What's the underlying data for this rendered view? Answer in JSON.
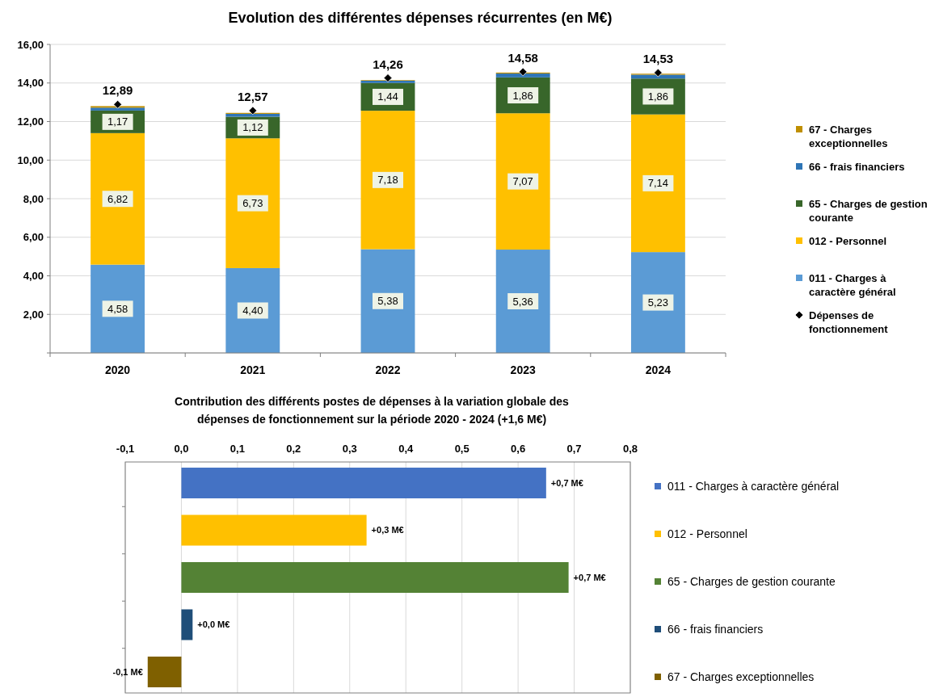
{
  "chart_data": [
    {
      "type": "bar",
      "title": "Evolution des différentes dépenses récurrentes (en M€)",
      "categories": [
        "2020",
        "2021",
        "2022",
        "2023",
        "2024"
      ],
      "stacked": true,
      "ylim": [
        0,
        16
      ],
      "yticks": [
        {
          "value": 0,
          "label": null
        },
        {
          "value": 2,
          "label": "2,00"
        },
        {
          "value": 4,
          "label": "4,00"
        },
        {
          "value": 6,
          "label": "6,00"
        },
        {
          "value": 8,
          "label": "8,00"
        },
        {
          "value": 10,
          "label": "10,00"
        },
        {
          "value": 12,
          "label": "12,00"
        },
        {
          "value": 14,
          "label": "14,00"
        },
        {
          "value": 16,
          "label": "16,00"
        }
      ],
      "grid": "y",
      "legend": "right",
      "series": [
        {
          "name": "011 - Charges à caractère général",
          "color": "#5b9bd5",
          "values": [
            4.58,
            4.4,
            5.38,
            5.36,
            5.23
          ],
          "value_labels": [
            "4,58",
            "4,40",
            "5,38",
            "5,36",
            "5,23"
          ]
        },
        {
          "name": "012 - Personnel",
          "color": "#ffc000",
          "values": [
            6.82,
            6.73,
            7.18,
            7.07,
            7.14
          ],
          "value_labels": [
            "6,82",
            "6,73",
            "7,18",
            "7,07",
            "7,14"
          ]
        },
        {
          "name": "65 - Charges de gestion courante",
          "color": "#38662a",
          "values": [
            1.17,
            1.12,
            1.44,
            1.86,
            1.86
          ],
          "value_labels": [
            "1,17",
            "1,12",
            "1,44",
            "1,86",
            "1,86"
          ]
        },
        {
          "name": "66 - frais financiers",
          "color": "#2e75b6",
          "values": [
            0.15,
            0.15,
            0.12,
            0.2,
            0.2
          ]
        },
        {
          "name": "67 - Charges exceptionnelles",
          "color": "#bf8f00",
          "values": [
            0.08,
            0.05,
            0.03,
            0.05,
            0.05
          ]
        },
        {
          "name": "Dépenses de fonctionnement",
          "type": "scatter",
          "marker": "diamond",
          "color": "#000000",
          "values": [
            12.89,
            12.57,
            14.26,
            14.58,
            14.53
          ],
          "value_labels": [
            "12,89",
            "12,57",
            "14,26",
            "14,58",
            "14,53"
          ]
        }
      ]
    },
    {
      "type": "bar",
      "title": "Contribution des différents postes de dépenses à la variation globale des dépenses de fonctionnement sur la période 2020 - 2024 (+1,6 M€)",
      "orientation": "horizontal",
      "stacked": true,
      "categories": [
        null,
        null,
        null,
        null,
        null
      ],
      "xlim": [
        -0.1,
        0.8
      ],
      "xticks": [
        {
          "value": -0.1,
          "label": "-0,1"
        },
        {
          "value": 0,
          "label": "0,0"
        },
        {
          "value": 0.1,
          "label": "0,1"
        },
        {
          "value": 0.2,
          "label": "0,2"
        },
        {
          "value": 0.3,
          "label": "0,3"
        },
        {
          "value": 0.4,
          "label": "0,4"
        },
        {
          "value": 0.5,
          "label": "0,5"
        },
        {
          "value": 0.6,
          "label": "0,6"
        },
        {
          "value": 0.7,
          "label": "0,7"
        },
        {
          "value": 0.8,
          "label": "0,8"
        }
      ],
      "grid": "x",
      "legend": "right",
      "series": [
        {
          "name": "011 - Charges à caractère général",
          "color": "#4472c4",
          "values": [
            0.65,
            null,
            null,
            null,
            null
          ],
          "value_labels": [
            "+0,7 M€",
            null,
            null,
            null,
            null
          ]
        },
        {
          "name": "012 - Personnel",
          "color": "#ffc000",
          "values": [
            null,
            0.33,
            null,
            null,
            null
          ],
          "value_labels": [
            null,
            "+0,3 M€",
            null,
            null,
            null
          ]
        },
        {
          "name": "65 - Charges de gestion courante",
          "color": "#548235",
          "values": [
            null,
            null,
            0.69,
            null,
            null
          ],
          "value_labels": [
            null,
            null,
            "+0,7 M€",
            null,
            null
          ]
        },
        {
          "name": "66 - frais financiers",
          "color": "#1f4e79",
          "values": [
            null,
            null,
            null,
            0.02,
            null
          ],
          "value_labels": [
            null,
            null,
            null,
            "+0,0 M€",
            null
          ]
        },
        {
          "name": "67 - Charges exceptionnelles",
          "color": "#7f6000",
          "values": [
            null,
            null,
            null,
            null,
            -0.06
          ],
          "value_labels": [
            null,
            null,
            null,
            null,
            "-0,1 M€"
          ]
        }
      ]
    }
  ]
}
